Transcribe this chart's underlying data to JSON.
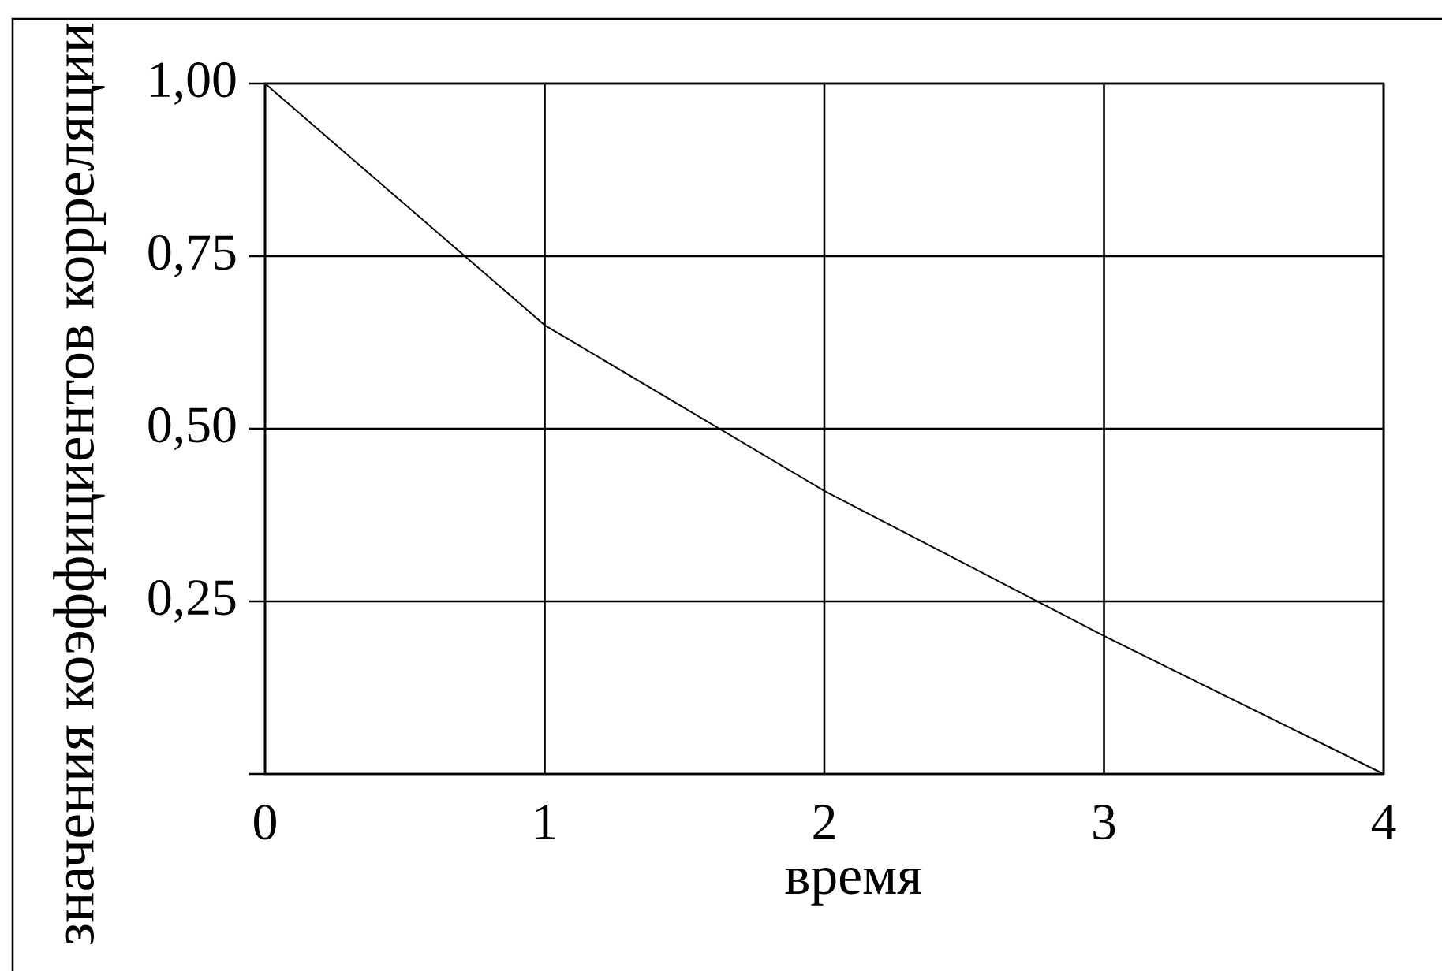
{
  "chart_data": {
    "type": "line",
    "xlabel": "время",
    "ylabel": "значения коэффициентов корреляции",
    "x": [
      0,
      1,
      2,
      3,
      4
    ],
    "values": [
      1.0,
      0.65,
      0.41,
      0.2,
      0
    ],
    "color": "#000000",
    "xlim": [
      0,
      4
    ],
    "ylim": [
      0,
      1
    ],
    "xticks": [
      0,
      1,
      2,
      3,
      4
    ],
    "yticks": [
      {
        "value": 0,
        "label": null
      },
      {
        "value": 0.25,
        "label": "0,25"
      },
      {
        "value": 0.5,
        "label": "0,50"
      },
      {
        "value": 0.75,
        "label": "0,75"
      },
      {
        "value": 1,
        "label": "1,00"
      }
    ],
    "grid": true
  }
}
